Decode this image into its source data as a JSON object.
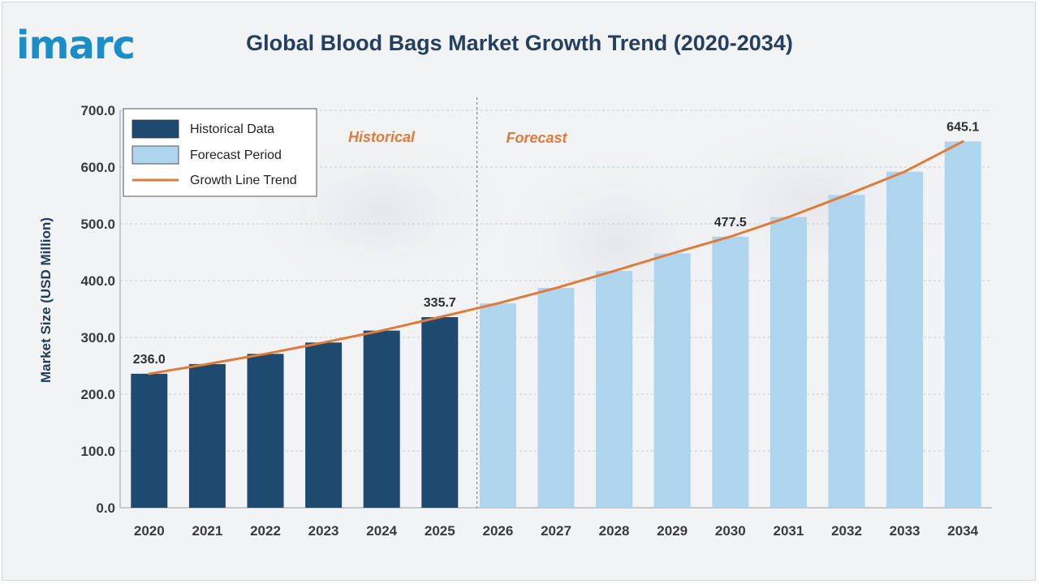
{
  "brand": {
    "logo_text": "imarc",
    "accent": "#1b8ec9"
  },
  "chart_data": {
    "type": "bar",
    "title": "Global Blood Bags Market Growth Trend (2020-2034)",
    "ylabel": "Market Size (USD Million)",
    "xlabel": "",
    "ylim": [
      0,
      700
    ],
    "yticks": [
      "0.0",
      "100.0",
      "200.0",
      "300.0",
      "400.0",
      "500.0",
      "600.0",
      "700.0"
    ],
    "categories": [
      "2020",
      "2021",
      "2022",
      "2023",
      "2024",
      "2025",
      "2026",
      "2027",
      "2028",
      "2029",
      "2030",
      "2031",
      "2032",
      "2033",
      "2034"
    ],
    "series": [
      {
        "name": "Historical Data",
        "color": "#1e4a6f",
        "values": [
          236.0,
          253.0,
          271.0,
          291.0,
          312.0,
          335.7,
          null,
          null,
          null,
          null,
          null,
          null,
          null,
          null,
          null
        ]
      },
      {
        "name": "Forecast Period",
        "color": "#aed4ee",
        "values": [
          null,
          null,
          null,
          null,
          null,
          null,
          360.0,
          387.0,
          417.0,
          448.0,
          477.5,
          512.0,
          551.0,
          592.0,
          645.1
        ]
      },
      {
        "name": "Growth Line Trend",
        "color": "#e07b39",
        "type": "line",
        "values": [
          236.0,
          253.0,
          271.0,
          291.0,
          312.0,
          335.7,
          360.0,
          387.0,
          417.0,
          448.0,
          477.5,
          512.0,
          551.0,
          592.0,
          645.1
        ]
      }
    ],
    "data_labels": [
      {
        "category": "2020",
        "text": "236.0"
      },
      {
        "category": "2025",
        "text": "335.7"
      },
      {
        "category": "2030",
        "text": "477.5"
      },
      {
        "category": "2034",
        "text": "645.1"
      }
    ],
    "period_labels": {
      "historical": "Historical",
      "forecast": "Forecast"
    },
    "legend_position": "top-left",
    "grid": true
  }
}
